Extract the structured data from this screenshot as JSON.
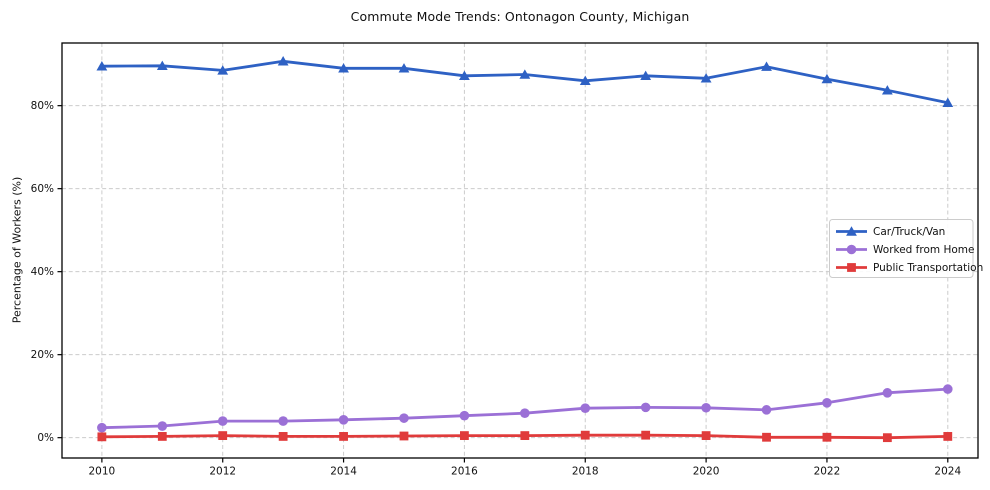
{
  "chart_data": {
    "type": "line",
    "title": "Commute Mode Trends: Ontonagon County, Michigan",
    "xlabel": "",
    "ylabel": "Percentage of Workers (%)",
    "x": [
      2010,
      2011,
      2012,
      2013,
      2014,
      2015,
      2016,
      2017,
      2018,
      2019,
      2020,
      2021,
      2022,
      2023,
      2024
    ],
    "x_tick_values": [
      2010,
      2012,
      2014,
      2016,
      2018,
      2020,
      2022,
      2024
    ],
    "x_tick_labels": [
      "2010",
      "2012",
      "2014",
      "2016",
      "2018",
      "2020",
      "2022",
      "2024"
    ],
    "y_tick_values": [
      0,
      20,
      40,
      60,
      80
    ],
    "y_tick_labels": [
      "0%",
      "20%",
      "40%",
      "60%",
      "80%"
    ],
    "xlim": [
      2009.34,
      2024.5
    ],
    "ylim": [
      -4.9,
      95.1
    ],
    "grid": true,
    "grid_style": "dashed",
    "legend_position": "center-right",
    "series": [
      {
        "name": "Car/Truck/Van",
        "color": "#2e61c4",
        "marker": "triangle",
        "values": [
          89.5,
          89.6,
          88.5,
          90.7,
          89.0,
          89.0,
          87.2,
          87.5,
          86.0,
          87.2,
          86.6,
          89.4,
          86.4,
          83.7,
          80.7
        ]
      },
      {
        "name": "Worked from Home",
        "color": "#9b70d6",
        "marker": "circle",
        "values": [
          2.4,
          2.8,
          4.0,
          4.0,
          4.3,
          4.7,
          5.3,
          5.9,
          7.1,
          7.3,
          7.2,
          6.7,
          8.4,
          10.8,
          11.7
        ]
      },
      {
        "name": "Public Transportation",
        "color": "#e03b3b",
        "marker": "square",
        "values": [
          0.2,
          0.3,
          0.5,
          0.3,
          0.3,
          0.4,
          0.5,
          0.5,
          0.6,
          0.6,
          0.5,
          0.1,
          0.1,
          0.0,
          0.3
        ]
      }
    ],
    "colors": {
      "grid": "#cccccc",
      "spine": "#000000",
      "tick_label": "#111111",
      "legend_border": "#cccccc",
      "legend_background": "#ffffff"
    }
  }
}
